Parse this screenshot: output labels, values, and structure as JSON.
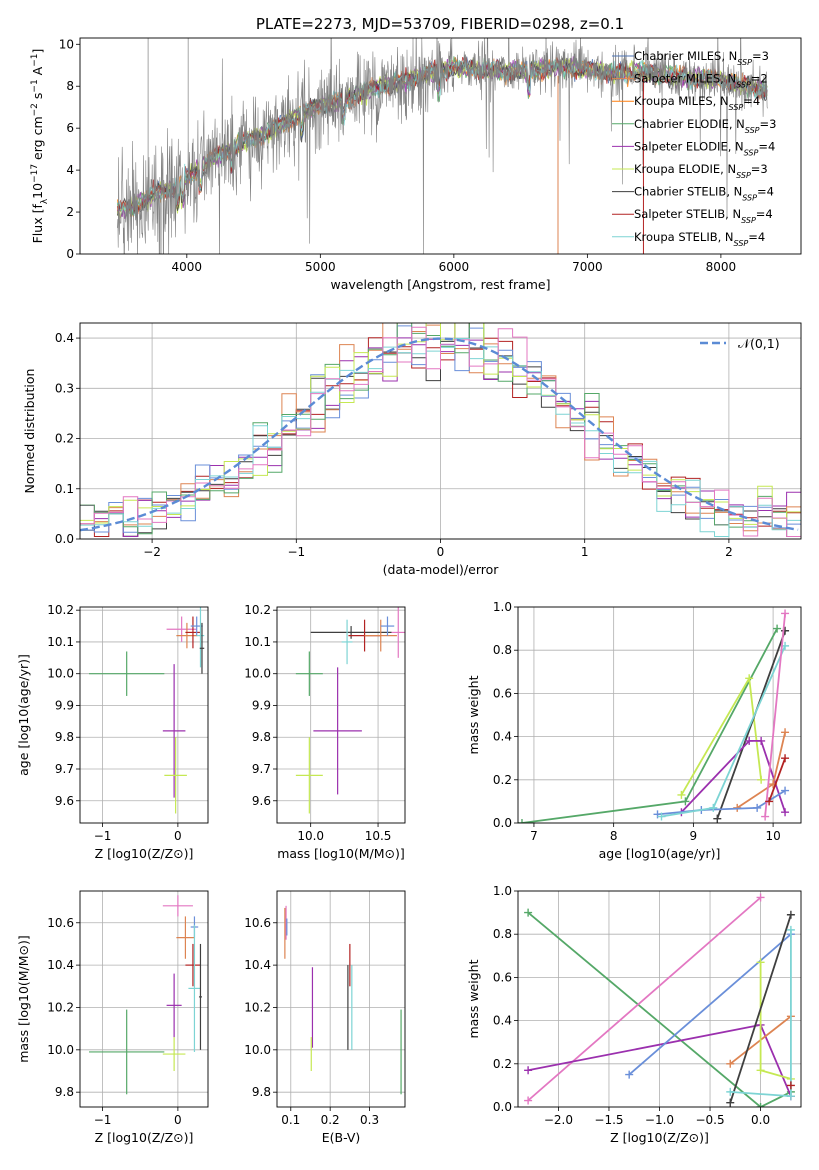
{
  "title": "PLATE=2273, MJD=53709, FIBERID=0298, z=0.1",
  "colors": [
    "#4c72b0",
    "#dd8452",
    "#ff7f0e",
    "#55a868",
    "#9b30ae",
    "#c5e853",
    "#3f3f3f",
    "#b22222",
    "#7dd4d4",
    "#e377c2",
    "#6a8fd9"
  ],
  "chart_data": [
    {
      "type": "line",
      "id": "spectrum",
      "xlabel": "wavelength [Angstrom, rest frame]",
      "ylabel": "Flux [f_λ 10^-17 erg cm^-2 s^-1 A^-1]",
      "xlim": [
        3200,
        8600
      ],
      "ylim": [
        0,
        10.3
      ],
      "xticks": [
        4000,
        5000,
        6000,
        7000,
        8000
      ],
      "yticks": [
        0,
        2,
        4,
        6,
        8,
        10
      ],
      "legend_position": "upper-right",
      "legend": [
        "Chabrier MILES, N_SSP=3",
        "Salpeter MILES, N_SSP=2",
        "Kroupa MILES, N_SSP=4",
        "Chabrier ELODIE, N_SSP=3",
        "Salpeter ELODIE, N_SSP=4",
        "Kroupa ELODIE, N_SSP=3",
        "Chabrier STELIB, N_SSP=4",
        "Salpeter STELIB, N_SSP=4",
        "Kroupa STELIB, N_SSP=4"
      ],
      "legend_colors": [
        "#4c72b0",
        "#dd8452",
        "#ff7f0e",
        "#55a868",
        "#9b30ae",
        "#c5e853",
        "#3f3f3f",
        "#b22222",
        "#7dd4d4"
      ],
      "continuum": {
        "x": [
          3500,
          3600,
          3700,
          3800,
          3900,
          4000,
          4200,
          4400,
          4600,
          4800,
          5000,
          5200,
          5400,
          5600,
          5800,
          6000,
          6200,
          6400,
          6600,
          6800,
          7000,
          7200,
          7400,
          7600,
          7800,
          8000,
          8200,
          8350
        ],
        "y": [
          2.1,
          2.3,
          2.6,
          3.0,
          3.1,
          3.6,
          4.6,
          5.2,
          5.8,
          6.5,
          7.1,
          7.4,
          7.9,
          8.2,
          8.6,
          8.9,
          8.8,
          8.7,
          8.8,
          8.9,
          8.8,
          8.6,
          8.7,
          8.5,
          8.4,
          8.3,
          8.0,
          7.8
        ]
      },
      "vertical_spikes": [
        {
          "x": 6780,
          "color": "#dd8452"
        },
        {
          "x": 7420,
          "color": "#b22222"
        }
      ]
    },
    {
      "type": "bar",
      "id": "residuals",
      "xlabel": "(data-model)/error",
      "ylabel": "Normed distribution",
      "xlim": [
        -2.5,
        2.5
      ],
      "ylim": [
        0,
        0.43
      ],
      "xticks": [
        -2,
        -1,
        0,
        1,
        2
      ],
      "yticks": [
        0.0,
        0.1,
        0.2,
        0.3,
        0.4
      ],
      "legend": [
        "𝒩(0,1)"
      ],
      "legend_position": "upper-right",
      "bin_width": 0.1
    },
    {
      "type": "scatter",
      "id": "age-vs-Z",
      "xlabel": "Z [log10(Z/Z⊙)]",
      "ylabel": "age [log10(age/yr)]",
      "xlim": [
        -1.3,
        0.4
      ],
      "ylim": [
        9.53,
        10.21
      ],
      "xticks": [
        -1,
        0
      ],
      "yticks": [
        9.6,
        9.7,
        9.8,
        9.9,
        10.0,
        10.1,
        10.2
      ],
      "points": [
        {
          "x": -0.68,
          "y": 10.0,
          "xerr": 0.5,
          "yerr": 0.07,
          "color": "#55a868"
        },
        {
          "x": -0.05,
          "y": 9.82,
          "xerr": 0.15,
          "yerr": 0.21,
          "color": "#9b30ae"
        },
        {
          "x": -0.03,
          "y": 9.68,
          "xerr": 0.15,
          "yerr": 0.12,
          "color": "#c5e853"
        },
        {
          "x": 0.05,
          "y": 10.14,
          "xerr": 0.2,
          "yerr": 0.04,
          "color": "#e377c2"
        },
        {
          "x": 0.12,
          "y": 10.12,
          "xerr": 0.14,
          "yerr": 0.04,
          "color": "#dd8452"
        },
        {
          "x": 0.2,
          "y": 10.13,
          "xerr": 0.1,
          "yerr": 0.05,
          "color": "#b22222"
        },
        {
          "x": 0.25,
          "y": 10.15,
          "xerr": 0.08,
          "yerr": 0.03,
          "color": "#6a8fd9"
        },
        {
          "x": 0.3,
          "y": 10.12,
          "xerr": 0.05,
          "yerr": 0.1,
          "color": "#7dd4d4"
        },
        {
          "x": 0.32,
          "y": 10.08,
          "xerr": 0.03,
          "yerr": 0.08,
          "color": "#3f3f3f"
        }
      ]
    },
    {
      "type": "scatter",
      "id": "age-vs-mass",
      "xlabel": "mass [log10(M/M⊙)]",
      "ylabel": "",
      "xlim": [
        9.75,
        10.7
      ],
      "ylim": [
        9.53,
        10.21
      ],
      "xticks": [
        10.0,
        10.5
      ],
      "yticks": [
        9.6,
        9.7,
        9.8,
        9.9,
        10.0,
        10.1,
        10.2
      ],
      "points": [
        {
          "x": 9.99,
          "y": 10.0,
          "xerr": 0.1,
          "yerr": 0.07,
          "color": "#55a868"
        },
        {
          "x": 10.2,
          "y": 9.82,
          "xerr": 0.18,
          "yerr": 0.2,
          "color": "#9b30ae"
        },
        {
          "x": 9.99,
          "y": 9.68,
          "xerr": 0.1,
          "yerr": 0.12,
          "color": "#c5e853"
        },
        {
          "x": 10.3,
          "y": 10.13,
          "xerr": 0.3,
          "yerr": 0.02,
          "color": "#3f3f3f"
        },
        {
          "x": 10.4,
          "y": 10.12,
          "xerr": 0.12,
          "yerr": 0.05,
          "color": "#b22222"
        },
        {
          "x": 10.52,
          "y": 10.12,
          "xerr": 0.12,
          "yerr": 0.05,
          "color": "#dd8452"
        },
        {
          "x": 10.57,
          "y": 10.15,
          "xerr": 0.05,
          "yerr": 0.03,
          "color": "#6a8fd9"
        },
        {
          "x": 10.65,
          "y": 10.13,
          "xerr": 0.05,
          "yerr": 0.08,
          "color": "#e377c2"
        },
        {
          "x": 10.27,
          "y": 10.1,
          "xerr": 0.04,
          "yerr": 0.07,
          "color": "#7dd4d4"
        }
      ]
    },
    {
      "type": "line",
      "id": "weight-vs-age",
      "xlabel": "age [log10(age/yr)]",
      "ylabel": "mass weight",
      "xlim": [
        6.8,
        10.35
      ],
      "ylim": [
        0,
        1.0
      ],
      "xticks": [
        7,
        8,
        9,
        10
      ],
      "yticks": [
        0.0,
        0.2,
        0.4,
        0.6,
        0.8,
        1.0
      ],
      "series": [
        {
          "color": "#55a868",
          "x": [
            6.85,
            8.9,
            10.05
          ],
          "y": [
            0.0,
            0.1,
            0.9
          ]
        },
        {
          "color": "#c5e853",
          "x": [
            8.85,
            9.7,
            9.85
          ],
          "y": [
            0.13,
            0.67,
            0.2
          ]
        },
        {
          "color": "#3f3f3f",
          "x": [
            9.3,
            10.15
          ],
          "y": [
            0.02,
            0.89
          ]
        },
        {
          "color": "#9b30ae",
          "x": [
            8.85,
            9.7,
            9.85,
            10.15
          ],
          "y": [
            0.05,
            0.38,
            0.38,
            0.05
          ]
        },
        {
          "color": "#dd8452",
          "x": [
            9.55,
            10.0,
            10.15
          ],
          "y": [
            0.07,
            0.18,
            0.42
          ]
        },
        {
          "color": "#6a8fd9",
          "x": [
            8.55,
            9.1,
            9.8,
            10.15
          ],
          "y": [
            0.04,
            0.06,
            0.07,
            0.15
          ]
        },
        {
          "color": "#7dd4d4",
          "x": [
            8.6,
            9.25,
            10.15
          ],
          "y": [
            0.03,
            0.07,
            0.82
          ]
        },
        {
          "color": "#e377c2",
          "x": [
            9.9,
            10.15
          ],
          "y": [
            0.03,
            0.97
          ]
        },
        {
          "color": "#b22222",
          "x": [
            9.95,
            10.15
          ],
          "y": [
            0.1,
            0.3
          ]
        }
      ]
    },
    {
      "type": "scatter",
      "id": "mass-vs-Z",
      "xlabel": "Z [log10(Z/Z⊙)]",
      "ylabel": "mass [log10(M/M⊙)]",
      "xlim": [
        -1.3,
        0.4
      ],
      "ylim": [
        9.73,
        10.75
      ],
      "xticks": [
        -1,
        0
      ],
      "yticks": [
        9.8,
        10.0,
        10.2,
        10.4,
        10.6
      ],
      "points": [
        {
          "x": -0.68,
          "y": 9.99,
          "xerr": 0.5,
          "yerr": 0.2,
          "color": "#55a868"
        },
        {
          "x": -0.05,
          "y": 9.98,
          "xerr": 0.15,
          "yerr": 0.08,
          "color": "#c5e853"
        },
        {
          "x": -0.05,
          "y": 10.21,
          "xerr": 0.1,
          "yerr": 0.15,
          "color": "#9b30ae"
        },
        {
          "x": 0.0,
          "y": 10.68,
          "xerr": 0.2,
          "yerr": 0.05,
          "color": "#e377c2"
        },
        {
          "x": 0.1,
          "y": 10.53,
          "xerr": 0.12,
          "yerr": 0.1,
          "color": "#dd8452"
        },
        {
          "x": 0.2,
          "y": 10.4,
          "xerr": 0.1,
          "yerr": 0.1,
          "color": "#b22222"
        },
        {
          "x": 0.22,
          "y": 10.58,
          "xerr": 0.05,
          "yerr": 0.05,
          "color": "#6a8fd9"
        },
        {
          "x": 0.22,
          "y": 10.29,
          "xerr": 0.08,
          "yerr": 0.3,
          "color": "#7dd4d4"
        },
        {
          "x": 0.3,
          "y": 10.25,
          "xerr": 0.02,
          "yerr": 0.25,
          "color": "#3f3f3f"
        }
      ]
    },
    {
      "type": "scatter",
      "id": "mass-vs-EBV",
      "xlabel": "E(B-V)",
      "ylabel": "",
      "xlim": [
        0.065,
        0.39
      ],
      "ylim": [
        9.73,
        10.75
      ],
      "xticks": [
        0.1,
        0.2,
        0.3
      ],
      "yticks": [
        9.8,
        10.0,
        10.2,
        10.4,
        10.6
      ],
      "points": [
        {
          "x": 0.085,
          "y": 10.55,
          "yerr": 0.12,
          "color": "#dd8452"
        },
        {
          "x": 0.088,
          "y": 10.6,
          "yerr": 0.08,
          "color": "#e377c2"
        },
        {
          "x": 0.09,
          "y": 10.58,
          "yerr": 0.04,
          "color": "#6a8fd9"
        },
        {
          "x": 0.155,
          "y": 10.2,
          "yerr": 0.19,
          "color": "#9b30ae"
        },
        {
          "x": 0.152,
          "y": 9.98,
          "yerr": 0.08,
          "color": "#c5e853"
        },
        {
          "x": 0.245,
          "y": 10.2,
          "yerr": 0.2,
          "color": "#3f3f3f"
        },
        {
          "x": 0.25,
          "y": 10.4,
          "yerr": 0.1,
          "color": "#b22222"
        },
        {
          "x": 0.255,
          "y": 10.2,
          "yerr": 0.2,
          "color": "#7dd4d4"
        },
        {
          "x": 0.38,
          "y": 9.99,
          "yerr": 0.2,
          "color": "#55a868"
        }
      ]
    },
    {
      "type": "line",
      "id": "weight-vs-Z",
      "xlabel": "Z [log10(Z/Z⊙)]",
      "ylabel": "mass weight",
      "xlim": [
        -2.4,
        0.4
      ],
      "ylim": [
        0,
        1.0
      ],
      "xticks": [
        -2.0,
        -1.5,
        -1.0,
        -0.5,
        0.0
      ],
      "yticks": [
        0.0,
        0.2,
        0.4,
        0.6,
        0.8,
        1.0
      ],
      "series": [
        {
          "color": "#55a868",
          "x": [
            -2.3,
            0.0,
            0.3
          ],
          "y": [
            0.9,
            0.0,
            0.07
          ]
        },
        {
          "color": "#e377c2",
          "x": [
            -2.3,
            0.0
          ],
          "y": [
            0.03,
            0.97
          ]
        },
        {
          "color": "#9b30ae",
          "x": [
            -2.3,
            0.0,
            0.3
          ],
          "y": [
            0.17,
            0.38,
            0.05
          ]
        },
        {
          "color": "#6a8fd9",
          "x": [
            -1.3,
            0.3
          ],
          "y": [
            0.15,
            0.8
          ]
        },
        {
          "color": "#dd8452",
          "x": [
            -0.3,
            0.3
          ],
          "y": [
            0.2,
            0.42
          ]
        },
        {
          "color": "#c5e853",
          "x": [
            0.0,
            0.0,
            0.3
          ],
          "y": [
            0.67,
            0.17,
            0.13
          ]
        },
        {
          "color": "#3f3f3f",
          "x": [
            -0.3,
            0.3
          ],
          "y": [
            0.02,
            0.89
          ]
        },
        {
          "color": "#7dd4d4",
          "x": [
            -0.3,
            0.3,
            0.3
          ],
          "y": [
            0.07,
            0.05,
            0.82
          ]
        },
        {
          "color": "#b22222",
          "x": [
            0.3
          ],
          "y": [
            0.1
          ]
        }
      ]
    }
  ]
}
